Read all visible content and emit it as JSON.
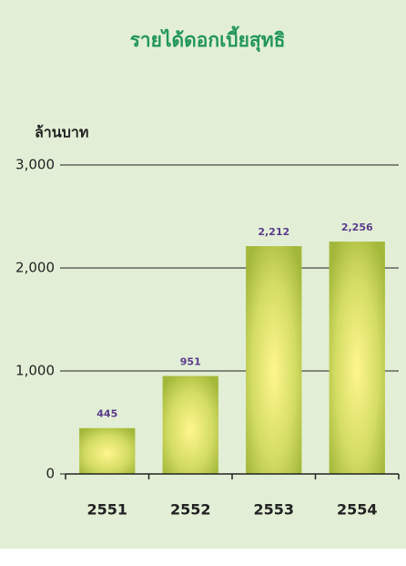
{
  "chart_data": {
    "type": "bar",
    "title": "รายได้ดอกเบี้ยสุทธิ",
    "y_label": "ล้านบาท",
    "categories": [
      "2551",
      "2552",
      "2553",
      "2554"
    ],
    "values": [
      445,
      951,
      2212,
      2256
    ],
    "value_labels": [
      "445",
      "951",
      "2,212",
      "2,256"
    ],
    "ylim": [
      0,
      3000
    ],
    "yticks": [
      0,
      {
        "value": 1000,
        "label": "1,000"
      },
      {
        "value": 2000,
        "label": "2,000"
      },
      {
        "value": 3000,
        "label": "3,000"
      }
    ],
    "grid": true
  }
}
